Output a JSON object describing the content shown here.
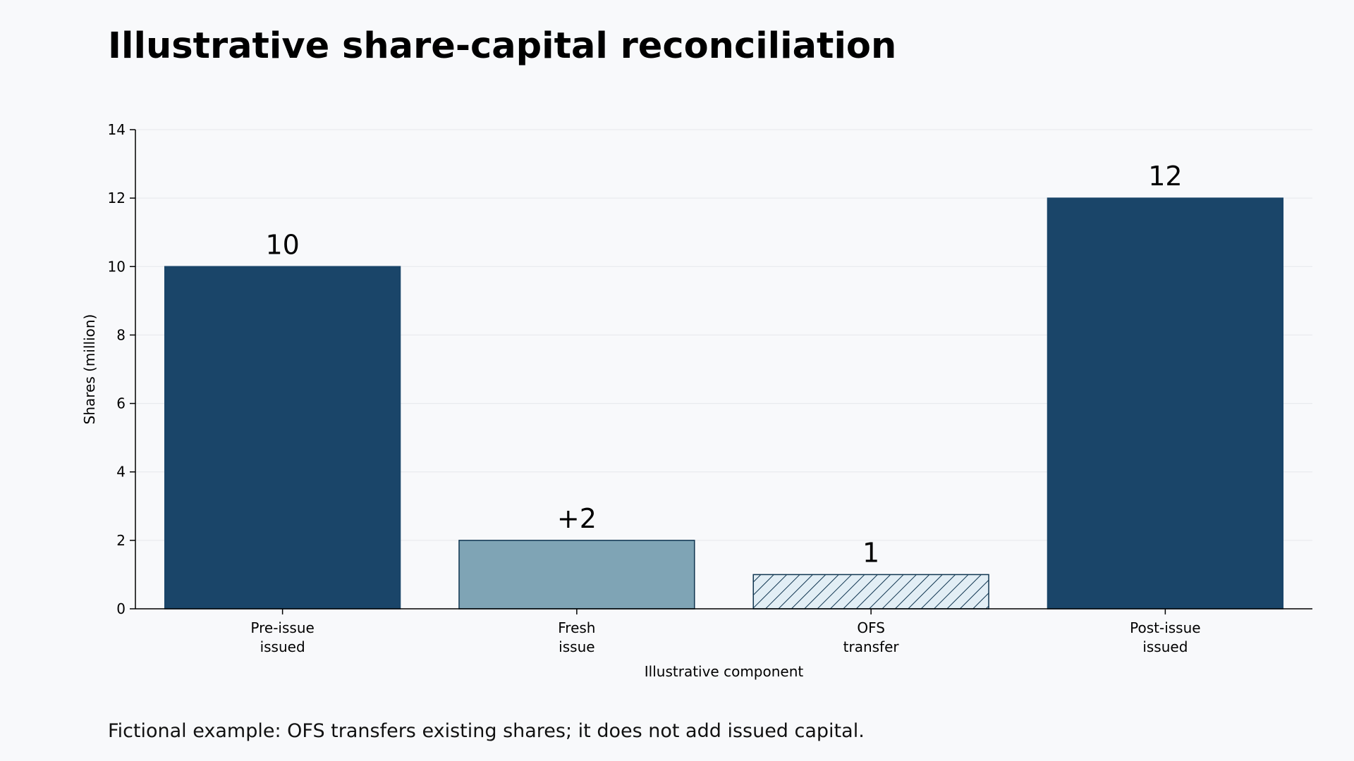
{
  "title": "Illustrative share-capital reconciliation",
  "footnote": "Fictional example: OFS transfers existing shares; it does not add issued capital.",
  "chart_data": {
    "type": "bar",
    "title": "Illustrative share-capital reconciliation",
    "xlabel": "Illustrative component",
    "ylabel": "Shares (million)",
    "ylim": [
      0,
      14
    ],
    "yticks": [
      0,
      2,
      4,
      6,
      8,
      10,
      12,
      14
    ],
    "grid": "horizontal",
    "categories": [
      [
        "Pre-issue",
        "issued"
      ],
      [
        "Fresh",
        "issue"
      ],
      [
        "OFS",
        "transfer"
      ],
      [
        "Post-issue",
        "issued"
      ]
    ],
    "values": [
      10,
      2,
      1,
      12
    ],
    "data_labels": [
      "10",
      "+2",
      "1",
      "12"
    ],
    "bar_styles": [
      "solid-dark",
      "solid-light",
      "hatched",
      "solid-dark"
    ],
    "colors": {
      "dark": "#1a4569",
      "light": "#7fa4b5",
      "hatch_fill": "#e2eef5",
      "edge": "#0f3550",
      "grid": "#e6e8eb"
    }
  }
}
